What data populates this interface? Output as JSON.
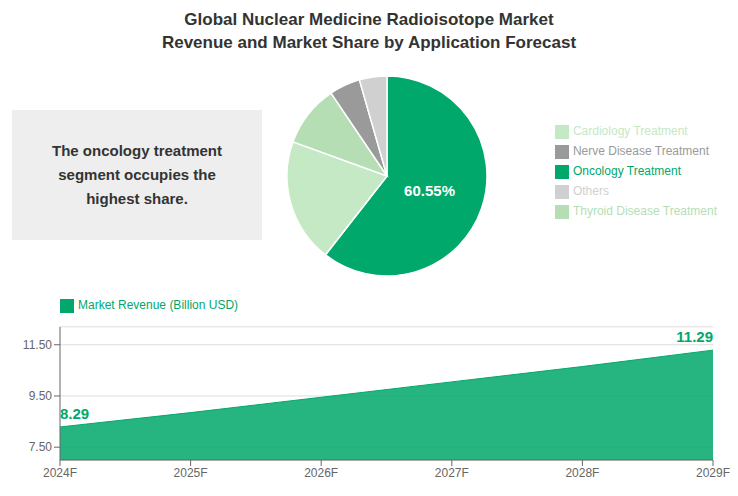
{
  "chart_data": [
    {
      "type": "pie",
      "title": "Global Nuclear Medicine Radioisotope Market",
      "subtitle": "Revenue and Market Share by Application Forecast",
      "annotation": "The oncology treatment\nsegment occupies the\nhighest share.",
      "categories": [
        "Oncology Treatment",
        "Cardiology Treatment",
        "Thyroid Disease Treatment",
        "Nerve Disease Treatment",
        "Others"
      ],
      "values": [
        60.55,
        20.0,
        10.0,
        5.0,
        4.45
      ],
      "value_labels": [
        "60.55%",
        null,
        null,
        null,
        null
      ],
      "colors": [
        "#00a86b",
        "#c5e8c5",
        "#b5deb5",
        "#9a9a9a",
        "#d0d0d0"
      ],
      "legend": "right"
    },
    {
      "type": "area",
      "categories": [
        "2024F",
        "2025F",
        "2026F",
        "2027F",
        "2028F",
        "2029F"
      ],
      "series": [
        {
          "name": "Market Revenue (Billion USD)",
          "color": "#00a86b",
          "values": [
            8.29,
            8.85,
            9.45,
            10.05,
            10.65,
            11.29
          ]
        }
      ],
      "value_labels": [
        "8.29",
        null,
        null,
        null,
        null,
        "11.29"
      ],
      "ylim": [
        7.0,
        12.2
      ],
      "yticks": [
        {
          "value": 7.5,
          "label": "7.50"
        },
        {
          "value": 9.5,
          "label": "9.50"
        },
        {
          "value": 11.5,
          "label": "11.50"
        }
      ],
      "grid": true,
      "legend": "top-left"
    }
  ]
}
